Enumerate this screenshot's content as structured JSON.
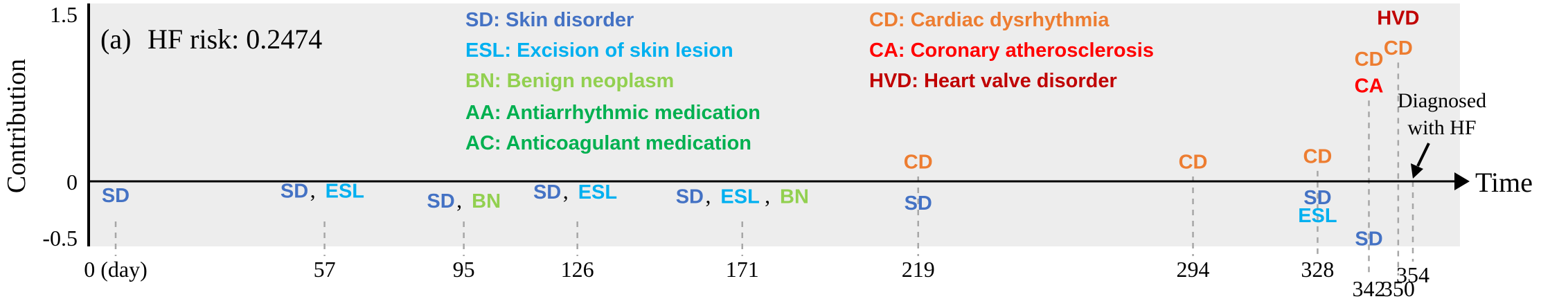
{
  "panel_label": "(a)",
  "risk_text": "HF risk: 0.2474",
  "colors": {
    "SD": "#4472C4",
    "ESL": "#00B0F0",
    "BN": "#92D050",
    "AA": "#00B050",
    "AC": "#00B050",
    "CD": "#ED7D31",
    "CA": "#FF0000",
    "HVD": "#C00000",
    "plot_bg": "#EDEDED",
    "axis": "#000000",
    "dash": "#A6A6A6",
    "text": "#000000"
  },
  "legend": {
    "col1": [
      {
        "text": "SD: Skin disorder",
        "code": "SD"
      },
      {
        "text": "ESL: Excision of skin lesion",
        "code": "ESL"
      },
      {
        "text": "BN: Benign neoplasm",
        "code": "BN"
      },
      {
        "text": "AA: Antiarrhythmic medication",
        "code": "AA"
      },
      {
        "text": "AC: Anticoagulant medication",
        "code": "AC"
      }
    ],
    "col2": [
      {
        "text": "CD: Cardiac dysrhythmia",
        "code": "CD"
      },
      {
        "text": "CA: Coronary atherosclerosis",
        "code": "CA"
      },
      {
        "text": "HVD: Heart valve disorder",
        "code": "HVD"
      }
    ]
  },
  "diagnosed_label": [
    "Diagnosed",
    "with HF"
  ],
  "chart_data": {
    "type": "scatter",
    "xlabel": "Time",
    "ylabel": "Contribution",
    "ylim": [
      -0.5,
      1.5
    ],
    "y_ticks": [
      "1.5",
      "0",
      "-0.5"
    ],
    "grid": false,
    "legend_position": "top-center",
    "visits": [
      {
        "day": 0,
        "tick_label": "0 (day)",
        "events": [
          {
            "code": "SD",
            "contribution": -0.12
          }
        ]
      },
      {
        "day": 57,
        "tick_label": "57",
        "events": [
          {
            "code": "SD",
            "contribution": -0.08
          },
          {
            "code": "ESL",
            "contribution": -0.08
          }
        ]
      },
      {
        "day": 95,
        "tick_label": "95",
        "events": [
          {
            "code": "SD",
            "contribution": -0.17
          },
          {
            "code": "BN",
            "contribution": -0.17
          }
        ]
      },
      {
        "day": 126,
        "tick_label": "126",
        "events": [
          {
            "code": "SD",
            "contribution": -0.09
          },
          {
            "code": "ESL",
            "contribution": -0.09
          }
        ]
      },
      {
        "day": 171,
        "tick_label": "171",
        "events": [
          {
            "code": "SD",
            "contribution": -0.13
          },
          {
            "code": "ESL",
            "contribution": -0.13
          },
          {
            "code": "BN",
            "contribution": -0.13
          }
        ]
      },
      {
        "day": 219,
        "tick_label": "219",
        "events": [
          {
            "code": "CD",
            "contribution": 0.18
          },
          {
            "code": "SD",
            "contribution": -0.19
          }
        ]
      },
      {
        "day": 294,
        "tick_label": "294",
        "events": [
          {
            "code": "CD",
            "contribution": 0.18
          }
        ]
      },
      {
        "day": 328,
        "tick_label": "328",
        "events": [
          {
            "code": "CD",
            "contribution": 0.23
          },
          {
            "code": "SD",
            "contribution": -0.14
          },
          {
            "code": "ESL",
            "contribution": -0.3
          }
        ]
      },
      {
        "day": 342,
        "tick_label": "342",
        "events": [
          {
            "code": "CD",
            "contribution": 1.1
          },
          {
            "code": "CA",
            "contribution": 0.86
          },
          {
            "code": "SD",
            "contribution": -0.51
          }
        ]
      },
      {
        "day": 350,
        "tick_label": "350",
        "events": [
          {
            "code": "HVD",
            "contribution": 1.47
          },
          {
            "code": "CD",
            "contribution": 1.2
          }
        ]
      },
      {
        "day": 354,
        "tick_label": "354",
        "events": []
      }
    ]
  }
}
